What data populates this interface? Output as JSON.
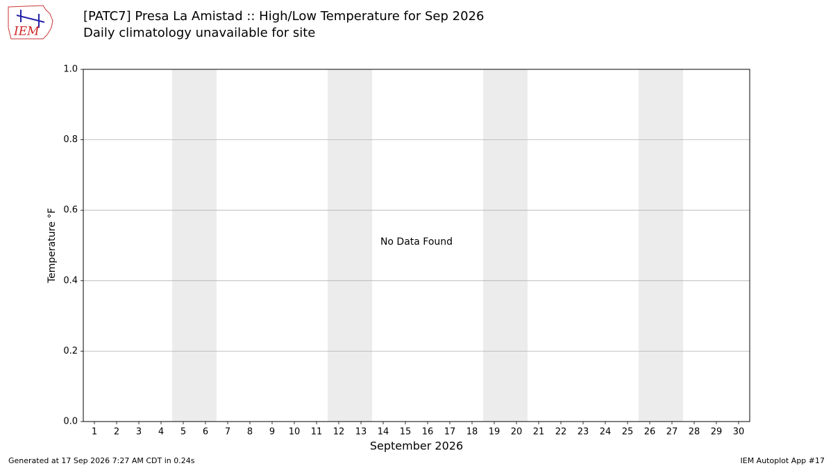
{
  "chart_data": {
    "type": "line",
    "title": "[PATC7] Presa La Amistad :: High/Low Temperature for Sep 2026",
    "subtitle": "Daily climatology unavailable for site",
    "ylabel": "Temperature °F",
    "xlabel": "September 2026",
    "annotation": "No Data Found",
    "logo_text": "IEM",
    "footer_left": "Generated at 17 Sep 2026 7:27 AM CDT in 0.24s",
    "footer_right": "IEM Autoplot App #17",
    "series": [],
    "xlim": [
      0.5,
      30.5
    ],
    "xticks": [
      1,
      2,
      3,
      4,
      5,
      6,
      7,
      8,
      9,
      10,
      11,
      12,
      13,
      14,
      15,
      16,
      17,
      18,
      19,
      20,
      21,
      22,
      23,
      24,
      25,
      26,
      27,
      28,
      29,
      30
    ],
    "ylim": [
      0,
      1
    ],
    "yticks": [
      {
        "value": 0,
        "label": "0.0"
      },
      0.2,
      0.4,
      0.6,
      0.8,
      {
        "value": 1,
        "label": "1.0"
      }
    ],
    "shaded_spans": [
      [
        4.5,
        6.5
      ],
      [
        11.5,
        13.5
      ],
      [
        18.5,
        20.5
      ],
      [
        25.5,
        27.5
      ]
    ],
    "shade_color": "#ececec",
    "grid": true
  }
}
